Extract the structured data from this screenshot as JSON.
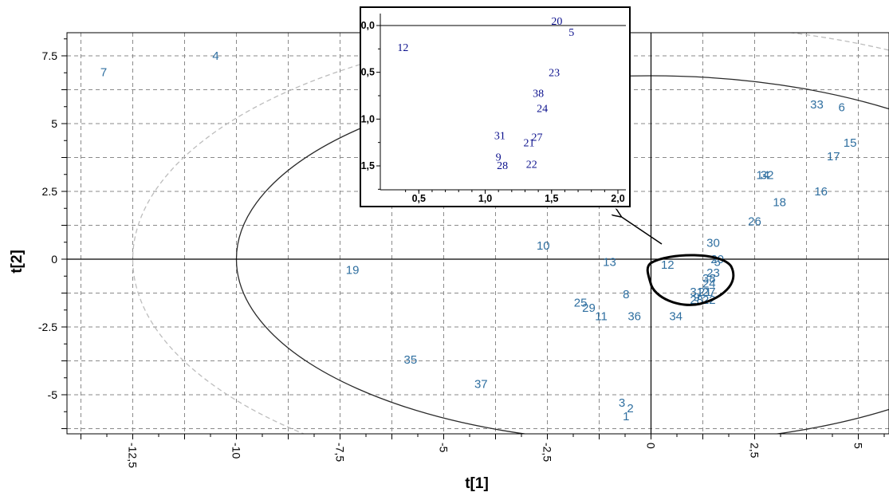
{
  "chart_data": {
    "type": "scatter",
    "xlabel": "t[1]",
    "ylabel": "t[2]",
    "xlim": [
      -13.9,
      6
    ],
    "ylim": [
      -6.3,
      8.4
    ],
    "x_ticks": [
      -12.5,
      -10,
      -7.5,
      -5,
      -2.5,
      0,
      2.5,
      5
    ],
    "x_tick_labels": [
      "-12,5",
      "-10",
      "-7,5",
      "-5",
      "-2,5",
      "0",
      "2,5",
      "5"
    ],
    "y_ticks": [
      7.5,
      5,
      2.5,
      0,
      -2.5,
      -5
    ],
    "y_tick_labels": [
      "7.5",
      "5",
      "2.5",
      "0",
      "-2.5",
      "-5"
    ],
    "grid": true,
    "points": [
      {
        "label": "1",
        "x": -0.6,
        "y": -5.8
      },
      {
        "label": "2",
        "x": -0.5,
        "y": -5.5
      },
      {
        "label": "3",
        "x": -0.7,
        "y": -5.3
      },
      {
        "label": "4",
        "x": -10.5,
        "y": 7.5
      },
      {
        "label": "5",
        "x": 1.6,
        "y": -0.1
      },
      {
        "label": "6",
        "x": 4.6,
        "y": 5.6
      },
      {
        "label": "7",
        "x": -13.2,
        "y": 6.9
      },
      {
        "label": "8",
        "x": -0.6,
        "y": -1.3
      },
      {
        "label": "9",
        "x": 1.1,
        "y": -1.4
      },
      {
        "label": "10",
        "x": -2.6,
        "y": 0.5
      },
      {
        "label": "11",
        "x": -1.2,
        "y": -2.1
      },
      {
        "label": "12",
        "x": 0.4,
        "y": -0.2
      },
      {
        "label": "13",
        "x": -1.0,
        "y": -0.1
      },
      {
        "label": "14",
        "x": 2.7,
        "y": 3.1
      },
      {
        "label": "15",
        "x": 4.8,
        "y": 4.3
      },
      {
        "label": "16",
        "x": 4.1,
        "y": 2.5
      },
      {
        "label": "17",
        "x": 4.4,
        "y": 3.8
      },
      {
        "label": "18",
        "x": 3.1,
        "y": 2.1
      },
      {
        "label": "19",
        "x": -7.2,
        "y": -0.4
      },
      {
        "label": "20",
        "x": 1.6,
        "y": 0.0
      },
      {
        "label": "21",
        "x": 1.3,
        "y": -1.2
      },
      {
        "label": "22",
        "x": 1.4,
        "y": -1.5
      },
      {
        "label": "23",
        "x": 1.5,
        "y": -0.5
      },
      {
        "label": "24",
        "x": 1.4,
        "y": -0.9
      },
      {
        "label": "25",
        "x": -1.7,
        "y": -1.6
      },
      {
        "label": "26",
        "x": 2.5,
        "y": 1.4
      },
      {
        "label": "27",
        "x": 1.4,
        "y": -1.2
      },
      {
        "label": "28",
        "x": 1.1,
        "y": -1.5
      },
      {
        "label": "29",
        "x": -1.5,
        "y": -1.8
      },
      {
        "label": "30",
        "x": 1.5,
        "y": 0.6
      },
      {
        "label": "31",
        "x": 1.1,
        "y": -1.2
      },
      {
        "label": "32",
        "x": 2.8,
        "y": 3.1
      },
      {
        "label": "33",
        "x": 4.0,
        "y": 5.7
      },
      {
        "label": "34",
        "x": 0.6,
        "y": -2.1
      },
      {
        "label": "35",
        "x": -5.8,
        "y": -3.7
      },
      {
        "label": "36",
        "x": -0.4,
        "y": -2.1
      },
      {
        "label": "37",
        "x": -4.1,
        "y": -4.6
      },
      {
        "label": "38",
        "x": 1.4,
        "y": -0.7
      }
    ],
    "inset": {
      "xlim": [
        0.3,
        2.0
      ],
      "ylim": [
        -1.75,
        0.1
      ],
      "x_tick_labels": [
        "0,5",
        "1,0",
        "1,5",
        "2,0"
      ],
      "y_tick_labels": [
        "0,0",
        "0,5",
        "1,0",
        "1,5"
      ],
      "points": [
        {
          "label": "20",
          "x": 1.54,
          "y": 0.05
        },
        {
          "label": "5",
          "x": 1.65,
          "y": -0.07
        },
        {
          "label": "12",
          "x": 0.38,
          "y": -0.23
        },
        {
          "label": "23",
          "x": 1.52,
          "y": -0.5
        },
        {
          "label": "38",
          "x": 1.4,
          "y": -0.72
        },
        {
          "label": "24",
          "x": 1.43,
          "y": -0.88
        },
        {
          "label": "31",
          "x": 1.11,
          "y": -1.17
        },
        {
          "label": "27",
          "x": 1.39,
          "y": -1.19
        },
        {
          "label": "21",
          "x": 1.33,
          "y": -1.25
        },
        {
          "label": "9",
          "x": 1.1,
          "y": -1.4
        },
        {
          "label": "28",
          "x": 1.13,
          "y": -1.49
        },
        {
          "label": "22",
          "x": 1.35,
          "y": -1.48
        }
      ]
    }
  }
}
